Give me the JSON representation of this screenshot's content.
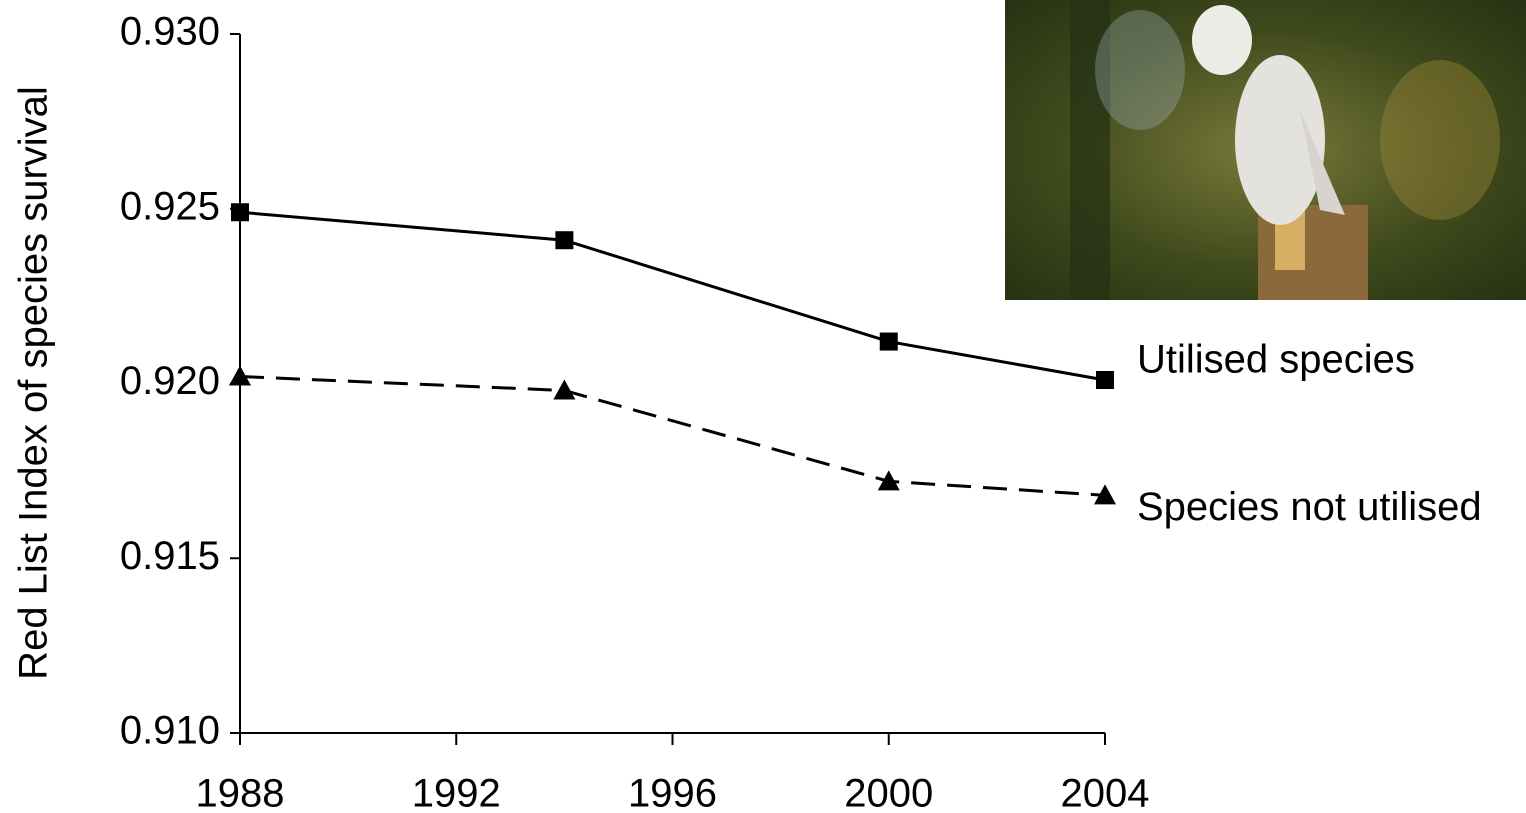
{
  "chart_data": {
    "type": "line",
    "y_label": "Red List Index of species survival",
    "x": [
      1988,
      1994,
      2000,
      2004
    ],
    "series": [
      {
        "name": "Utilised species",
        "color": "#000000",
        "line_style": "solid",
        "marker": "square",
        "values": [
          0.9249,
          0.9241,
          0.9212,
          0.9201
        ]
      },
      {
        "name": "Species not utilised",
        "color": "#000000",
        "line_style": "dashed",
        "marker": "triangle",
        "values": [
          0.9202,
          0.9198,
          0.9172,
          0.9168
        ]
      }
    ],
    "xlim": [
      1988,
      2004
    ],
    "xticks": [
      1988,
      1992,
      1996,
      2000,
      2004
    ],
    "ylim": [
      0.91,
      0.93
    ],
    "yticks": [
      {
        "value": 0.91,
        "label": "0.910"
      },
      0.915,
      {
        "value": 0.92,
        "label": "0.920"
      },
      0.925,
      {
        "value": 0.93,
        "label": "0.930"
      }
    ],
    "grid": false
  }
}
